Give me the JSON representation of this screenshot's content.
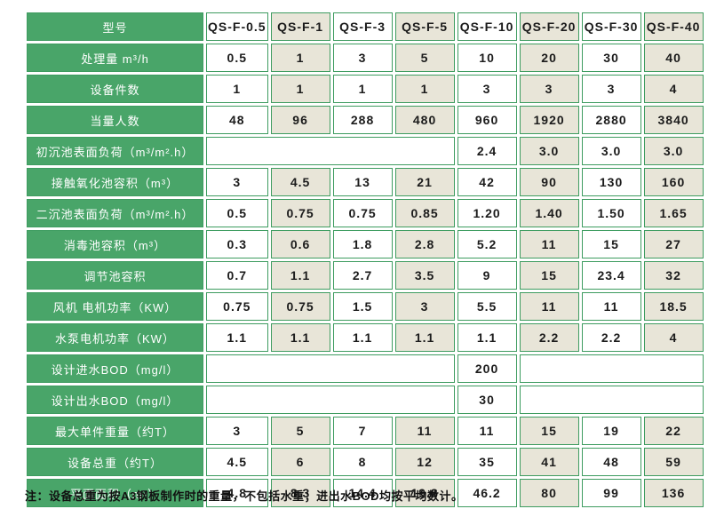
{
  "colors": {
    "label_green": "#49a569",
    "grid_green": "#3e9c60",
    "alt_column_beige": "#e8e5d8",
    "cell_white": "#ffffff",
    "text_dark": "#1b1b1b"
  },
  "table": {
    "header": {
      "label": "型号",
      "models": [
        "QS-F-0.5",
        "QS-F-1",
        "QS-F-3",
        "QS-F-5",
        "QS-F-10",
        "QS-F-20",
        "QS-F-30",
        "QS-F-40"
      ]
    },
    "rows": [
      {
        "label": "处理量 m³/h",
        "layout": "full",
        "values": [
          "0.5",
          "1",
          "3",
          "5",
          "10",
          "20",
          "30",
          "40"
        ]
      },
      {
        "label": "设备件数",
        "layout": "full",
        "values": [
          "1",
          "1",
          "1",
          "1",
          "3",
          "3",
          "3",
          "4"
        ]
      },
      {
        "label": "当量人数",
        "layout": "full",
        "values": [
          "48",
          "96",
          "288",
          "480",
          "960",
          "1920",
          "2880",
          "3840"
        ]
      },
      {
        "label": "初沉池表面负荷（m³/m².h）",
        "layout": "merge4_4",
        "values": [
          "2.4",
          "3.0",
          "3.0",
          "3.0"
        ]
      },
      {
        "label": "接触氧化池容积（m³）",
        "layout": "full",
        "values": [
          "3",
          "4.5",
          "13",
          "21",
          "42",
          "90",
          "130",
          "160"
        ]
      },
      {
        "label": "二沉池表面负荷（m³/m².h）",
        "layout": "full",
        "values": [
          "0.5",
          "0.75",
          "0.75",
          "0.85",
          "1.20",
          "1.40",
          "1.50",
          "1.65"
        ]
      },
      {
        "label": "消毒池容积（m³）",
        "layout": "full",
        "values": [
          "0.3",
          "0.6",
          "1.8",
          "2.8",
          "5.2",
          "11",
          "15",
          "27"
        ]
      },
      {
        "label": "调节池容积",
        "layout": "full",
        "values": [
          "0.7",
          "1.1",
          "2.7",
          "3.5",
          "9",
          "15",
          "23.4",
          "32"
        ]
      },
      {
        "label": "风机 电机功率（KW）",
        "layout": "full",
        "values": [
          "0.75",
          "0.75",
          "1.5",
          "3",
          "5.5",
          "11",
          "11",
          "18.5"
        ]
      },
      {
        "label": "水泵电机功率（KW）",
        "layout": "full",
        "values": [
          "1.1",
          "1.1",
          "1.1",
          "1.1",
          "1.1",
          "2.2",
          "2.2",
          "4"
        ]
      },
      {
        "label": "设计进水BOD（mg/l）",
        "layout": "merge4_1_3",
        "values": [
          "200"
        ]
      },
      {
        "label": "设计出水BOD（mg/l）",
        "layout": "merge4_1_3",
        "values": [
          "30"
        ]
      },
      {
        "label": "最大单件重量（约T）",
        "layout": "full",
        "values": [
          "3",
          "5",
          "7",
          "11",
          "11",
          "15",
          "19",
          "22"
        ]
      },
      {
        "label": "设备总重（约T）",
        "layout": "full",
        "values": [
          "4.5",
          "6",
          "8",
          "12",
          "35",
          "41",
          "48",
          "59"
        ]
      },
      {
        "label": "平面面积（m²）",
        "layout": "full",
        "values": [
          "4.8",
          "8.3",
          "14.4",
          "19.8",
          "46.2",
          "80",
          "99",
          "136"
        ]
      }
    ]
  },
  "note": "注：设备总重为按A3钢板制作时的重量，不包括水重；进出水BOD均按平均数计。"
}
